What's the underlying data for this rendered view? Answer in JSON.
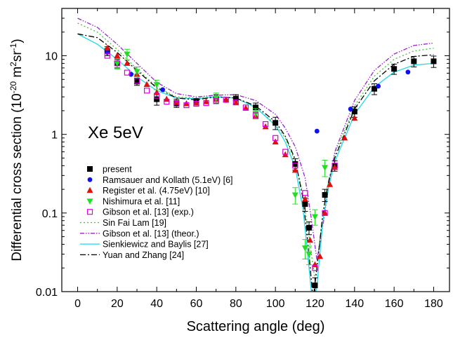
{
  "chart_data": {
    "type": "scatter",
    "title": "",
    "xlabel": "Scattering angle (deg)",
    "ylabel": "Differential cross section (10",
    "ylabel_exp1": "-20",
    "ylabel_mid": " m",
    "ylabel_exp2": "2",
    "ylabel_mid2": "sr",
    "ylabel_exp3": "-1",
    "ylabel_end": ")",
    "annotation": "Xe 5eV",
    "xlim": [
      -8,
      188
    ],
    "ylim": [
      0.01,
      40
    ],
    "yscale": "log",
    "xticks": [
      0,
      20,
      40,
      60,
      80,
      100,
      120,
      140,
      160,
      180
    ],
    "xtick_labels": [
      "0",
      "20",
      "40",
      "60",
      "80",
      "100",
      "120",
      "140",
      "160",
      "180"
    ],
    "yticks": [
      0.01,
      0.1,
      1,
      10
    ],
    "ytick_labels": [
      "0.01",
      "0.1",
      "1",
      "10"
    ],
    "legend_position": "lower-left",
    "series": [
      {
        "name": "present",
        "kind": "scatter",
        "marker": "square-filled",
        "color": "#000000",
        "x": [
          15,
          20,
          30,
          40,
          50,
          60,
          70,
          80,
          90,
          100,
          110,
          115,
          117,
          120,
          125,
          130,
          140,
          150,
          160,
          170,
          180
        ],
        "y": [
          11.5,
          8.0,
          4.7,
          2.8,
          2.5,
          2.6,
          2.85,
          2.85,
          2.2,
          1.4,
          0.42,
          0.13,
          0.065,
          0.012,
          0.17,
          0.4,
          1.95,
          3.8,
          6.8,
          8.5,
          8.5
        ],
        "err": [
          1.5,
          1.0,
          0.5,
          0.45,
          0.3,
          0.25,
          0.35,
          0.35,
          0.3,
          0.25,
          0.07,
          0.025,
          0.012,
          0.003,
          0.03,
          0.06,
          0.3,
          0.6,
          1.0,
          1.3,
          1.4
        ]
      },
      {
        "name": "Ramsauer and Kollath (5.1eV) [6]",
        "kind": "scatter",
        "marker": "circle-filled",
        "color": "#1010ee",
        "x": [
          15,
          27,
          43,
          75,
          121,
          138,
          152,
          167
        ],
        "y": [
          11.0,
          5.8,
          3.7,
          2.7,
          1.1,
          2.1,
          4.1,
          6.2
        ]
      },
      {
        "name": "Register et al. (4.75eV) [10]",
        "kind": "scatter",
        "marker": "triangle-up-filled",
        "color": "#e01010",
        "x": [
          15,
          20,
          25,
          30,
          35,
          40,
          45,
          50,
          55,
          60,
          65,
          70,
          75,
          80,
          85,
          90,
          95,
          100,
          105,
          110,
          115,
          117.5,
          120,
          122.5,
          125,
          127.5,
          130,
          135,
          140
        ],
        "y": [
          12.5,
          10.0,
          8.0,
          5.8,
          4.3,
          3.4,
          2.8,
          2.55,
          2.45,
          2.5,
          2.6,
          2.8,
          2.75,
          2.55,
          2.15,
          1.7,
          1.25,
          0.8,
          0.55,
          0.35,
          0.15,
          0.045,
          0.022,
          0.028,
          0.1,
          0.23,
          0.38,
          0.9,
          1.6
        ]
      },
      {
        "name": "Nishimura et al. [11]",
        "kind": "scatter",
        "marker": "triangle-down-filled",
        "color": "#22dd22",
        "x": [
          20,
          25,
          30,
          40,
          70,
          90,
          110,
          115,
          117,
          120,
          125
        ],
        "y": [
          8.0,
          10.5,
          6.3,
          4.3,
          2.9,
          1.85,
          0.17,
          0.036,
          0.03,
          0.09,
          0.38
        ],
        "err": [
          1.2,
          1.6,
          0.9,
          0.6,
          0.45,
          0.28,
          0.04,
          0.01,
          0.008,
          0.02,
          0.09
        ]
      },
      {
        "name": "Gibson et al. [13] (exp.)",
        "kind": "scatter",
        "marker": "square-open",
        "color": "#dd00dd",
        "x": [
          15,
          20,
          25,
          30,
          35,
          40,
          45,
          50,
          55,
          60,
          65,
          70,
          75,
          80,
          85,
          90,
          95,
          100,
          105,
          110,
          115,
          120,
          125,
          130
        ],
        "y": [
          10.0,
          8.0,
          6.1,
          4.8,
          3.6,
          3.1,
          2.6,
          2.45,
          2.35,
          2.45,
          2.5,
          2.65,
          2.75,
          2.55,
          2.2,
          1.75,
          1.35,
          0.9,
          0.6,
          0.4,
          0.18,
          0.02,
          0.1,
          0.4
        ]
      },
      {
        "name": "Sin Fai Lam [19]",
        "kind": "line",
        "dash": "2,3",
        "color": "#33cc33",
        "x": [
          0,
          10,
          20,
          30,
          40,
          50,
          60,
          70,
          80,
          90,
          100,
          105,
          110,
          114,
          117,
          120,
          123,
          126,
          130,
          140,
          150,
          160,
          170,
          180
        ],
        "y": [
          26,
          20,
          12,
          6.8,
          4.0,
          3.0,
          2.9,
          3.05,
          2.9,
          2.2,
          1.35,
          0.9,
          0.45,
          0.17,
          0.05,
          0.014,
          0.06,
          0.2,
          0.55,
          2.3,
          5.5,
          9.0,
          11.5,
          12.5
        ]
      },
      {
        "name": "Gibson et al. [13] (theor.)",
        "kind": "line",
        "dash": "6,2,1.5,2,1.5,2",
        "color": "#9922cc",
        "x": [
          0,
          10,
          20,
          30,
          40,
          50,
          60,
          70,
          80,
          90,
          100,
          105,
          110,
          115,
          118,
          121,
          124,
          127,
          130,
          140,
          150,
          160,
          170,
          180
        ],
        "y": [
          30,
          23,
          14,
          8.0,
          4.6,
          3.3,
          3.0,
          3.15,
          3.2,
          2.7,
          1.8,
          1.2,
          0.7,
          0.28,
          0.09,
          0.025,
          0.07,
          0.22,
          0.6,
          2.7,
          6.5,
          10.5,
          13.5,
          14.5
        ]
      },
      {
        "name": "Sienkiewicz and Baylis [27]",
        "kind": "line",
        "dash": "",
        "color": "#20d8e8",
        "x": [
          0,
          10,
          20,
          30,
          40,
          50,
          60,
          70,
          80,
          90,
          100,
          105,
          110,
          114,
          117,
          119,
          121,
          124,
          127,
          130,
          140,
          150,
          160,
          170,
          180
        ],
        "y": [
          19,
          14,
          9.0,
          5.4,
          3.6,
          2.9,
          2.85,
          3.0,
          2.9,
          2.2,
          1.3,
          0.8,
          0.38,
          0.11,
          0.02,
          0.006,
          0.012,
          0.08,
          0.22,
          0.45,
          1.8,
          4.0,
          6.2,
          7.6,
          8.0
        ]
      },
      {
        "name": "Yuan and Zhang [24]",
        "kind": "line",
        "dash": "8,3,2,3",
        "color": "#000000",
        "x": [
          0,
          10,
          20,
          30,
          40,
          50,
          60,
          70,
          80,
          90,
          100,
          105,
          110,
          114,
          117,
          119,
          121,
          124,
          127,
          130,
          140,
          150,
          160,
          170,
          180
        ],
        "y": [
          19,
          17,
          11,
          6.5,
          3.9,
          2.9,
          2.75,
          3.0,
          2.9,
          2.3,
          1.45,
          0.95,
          0.48,
          0.15,
          0.03,
          0.008,
          0.02,
          0.1,
          0.26,
          0.5,
          2.1,
          4.8,
          7.8,
          9.8,
          10.3
        ]
      }
    ]
  }
}
